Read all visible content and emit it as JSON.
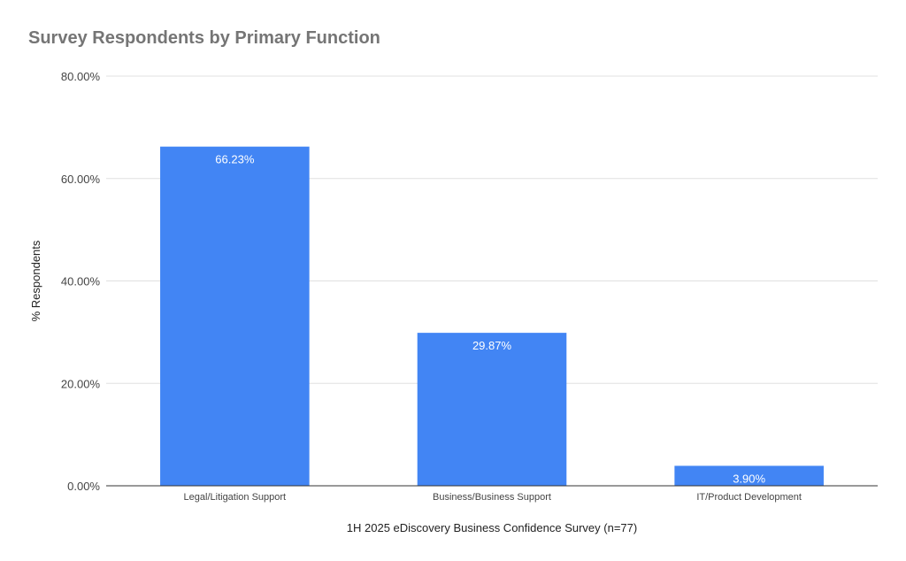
{
  "chart_data": {
    "type": "bar",
    "title": "Survey Respondents by Primary Function",
    "xlabel": "1H 2025 eDiscovery Business Confidence Survey (n=77)",
    "ylabel": "% Respondents",
    "categories": [
      "Legal/Litigation Support",
      "Business/Business Support",
      "IT/Product Development"
    ],
    "values": [
      66.23,
      29.87,
      3.9
    ],
    "data_labels": [
      "66.23%",
      "29.87%",
      "3.90%"
    ],
    "ylim": [
      0,
      80
    ],
    "yticks": [
      0,
      20,
      40,
      60,
      80
    ],
    "ytick_labels": [
      "0.00%",
      "20.00%",
      "40.00%",
      "60.00%",
      "80.00%"
    ],
    "grid": true,
    "legend": "none",
    "bar_color": "#4285f4",
    "grid_color": "#e0e0e0",
    "baseline_color": "#333333"
  }
}
